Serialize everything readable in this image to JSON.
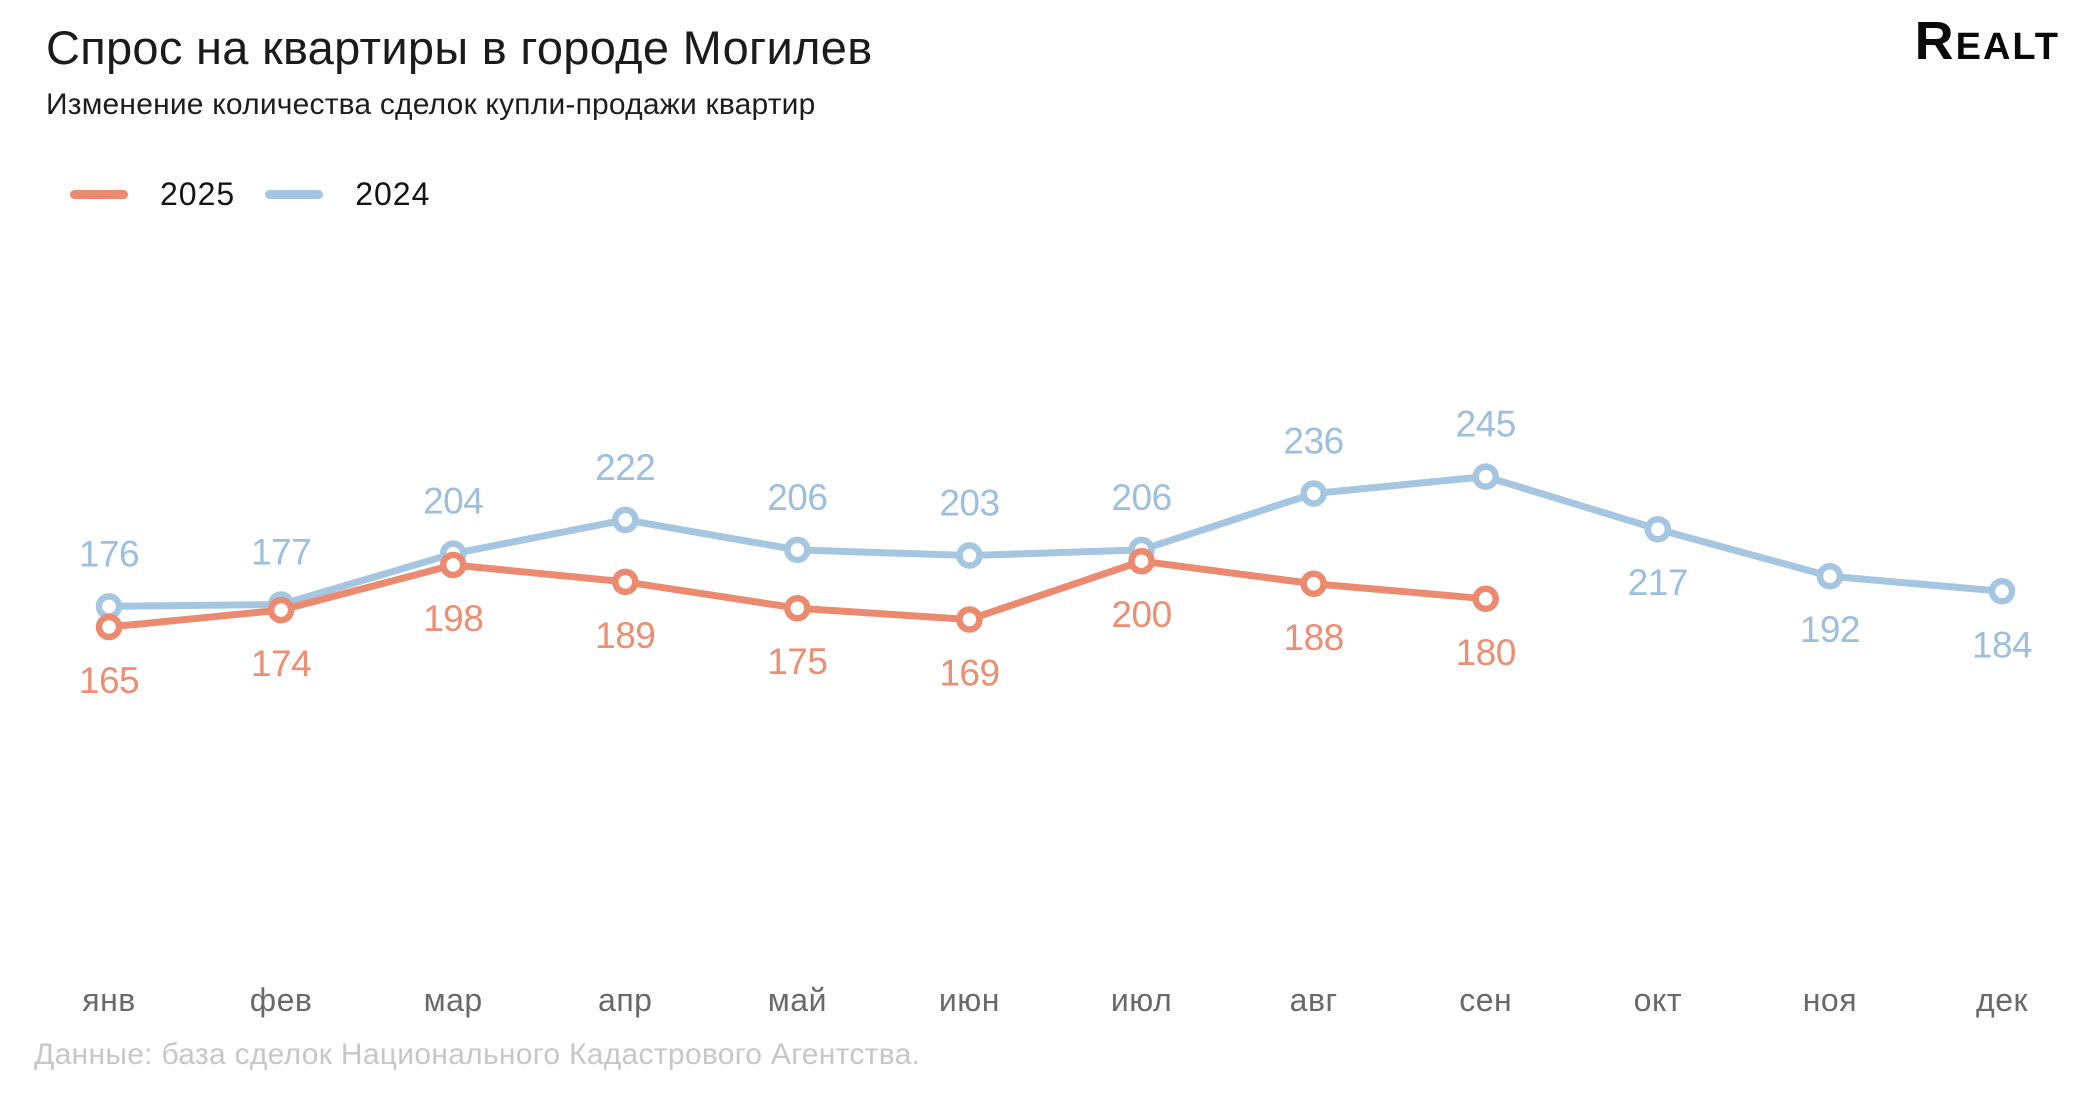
{
  "header": {
    "title": "Спрос на квартиры в городе Могилев",
    "subtitle": "Изменение количества сделок купли-продажи квартир",
    "logo": "Realt"
  },
  "chart_data": {
    "type": "line",
    "title": "Спрос на квартиры в городе Могилев",
    "subtitle": "Изменение количества сделок купли-продажи квартир",
    "categories": [
      "янв",
      "фев",
      "мар",
      "апр",
      "май",
      "июн",
      "июл",
      "авг",
      "сен",
      "окт",
      "ноя",
      "дек"
    ],
    "series": [
      {
        "name": "2025",
        "color": "#eb8a6e",
        "label_color": "#ed8d71",
        "values": [
          165,
          174,
          198,
          189,
          175,
          169,
          200,
          188,
          180
        ],
        "labels_position": "below"
      },
      {
        "name": "2024",
        "color": "#a5c6e0",
        "label_color": "#9bbfdd",
        "values": [
          176,
          177,
          204,
          222,
          206,
          203,
          206,
          236,
          245,
          217,
          192,
          184
        ],
        "labels_position": "above",
        "labels_below_from": 9
      }
    ],
    "y_implied_range": [
      160,
      250
    ],
    "grid": false,
    "axes_shown": false,
    "marker": "open-circle",
    "legend_position": "top-left"
  },
  "footer": {
    "source": "Данные: база сделок Национального Кадастрового Агентства."
  }
}
